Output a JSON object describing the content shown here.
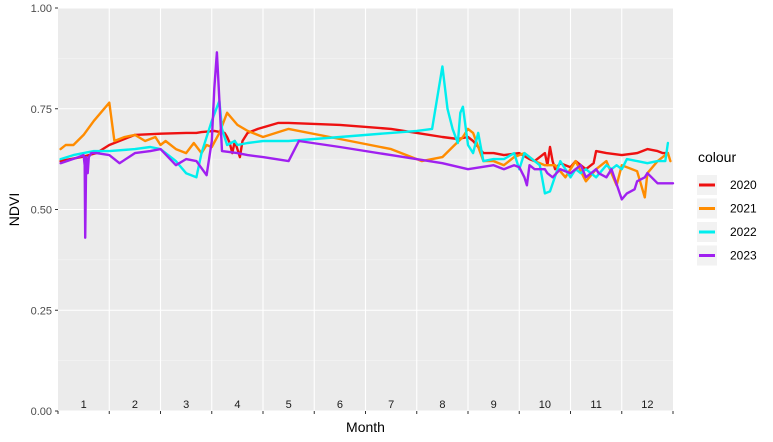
{
  "chart_data": {
    "type": "line",
    "xlabel": "Month",
    "ylabel": "NDVI",
    "ylim": [
      0,
      1
    ],
    "xlim": [
      0.5,
      12.5
    ],
    "y_ticks": [
      "0.00",
      "0.25",
      "0.50",
      "0.75",
      "1.00"
    ],
    "y_tick_values": [
      0,
      0.25,
      0.5,
      0.75,
      1.0
    ],
    "month_labels": [
      "1",
      "2",
      "3",
      "4",
      "5",
      "6",
      "7",
      "8",
      "9",
      "10",
      "11",
      "12"
    ],
    "grid": true,
    "legend": {
      "title": "colour",
      "placement": "right"
    },
    "series": [
      {
        "name": "2020",
        "color": "#ee1111",
        "x": [
          0.55,
          0.75,
          0.95,
          1.1,
          1.25,
          1.5,
          2.0,
          2.5,
          3.0,
          3.2,
          3.3,
          3.55,
          3.75,
          3.8,
          3.85,
          3.9,
          3.95,
          4.0,
          4.05,
          4.1,
          4.2,
          4.4,
          4.8,
          5.0,
          6.0,
          7.0,
          7.5,
          8.0,
          8.3,
          8.5,
          8.6,
          8.8,
          9.0,
          9.2,
          9.5,
          9.7,
          9.8,
          9.9,
          10.0,
          10.05,
          10.1,
          10.15,
          10.2,
          10.3,
          10.5,
          10.6,
          10.7,
          10.8,
          10.95,
          11.0,
          11.2,
          11.5,
          11.8,
          12.0,
          12.2,
          12.3,
          12.4
        ],
        "y": [
          0.62,
          0.625,
          0.63,
          0.635,
          0.64,
          0.66,
          0.685,
          0.688,
          0.69,
          0.69,
          0.692,
          0.695,
          0.69,
          0.68,
          0.665,
          0.64,
          0.67,
          0.65,
          0.63,
          0.67,
          0.69,
          0.7,
          0.715,
          0.715,
          0.71,
          0.7,
          0.69,
          0.68,
          0.675,
          0.68,
          0.67,
          0.64,
          0.64,
          0.635,
          0.64,
          0.625,
          0.62,
          0.63,
          0.64,
          0.61,
          0.655,
          0.62,
          0.6,
          0.615,
          0.605,
          0.62,
          0.61,
          0.6,
          0.615,
          0.645,
          0.64,
          0.635,
          0.64,
          0.65,
          0.645,
          0.64,
          0.64
        ]
      },
      {
        "name": "2021",
        "color": "#ff8c00",
        "x": [
          0.55,
          0.65,
          0.8,
          1.0,
          1.2,
          1.5,
          1.6,
          1.8,
          2.0,
          2.2,
          2.4,
          2.5,
          2.6,
          2.8,
          3.0,
          3.15,
          3.3,
          3.4,
          3.5,
          3.65,
          3.8,
          4.0,
          4.2,
          4.5,
          5.0,
          6.0,
          7.0,
          7.6,
          8.0,
          8.2,
          8.4,
          8.5,
          8.6,
          8.8,
          9.0,
          9.2,
          9.4,
          9.6,
          9.8,
          10.0,
          10.2,
          10.4,
          10.5,
          10.6,
          10.8,
          11.0,
          11.2,
          11.4,
          11.5,
          11.8,
          11.95,
          12.0,
          12.2,
          12.4,
          12.45
        ],
        "y": [
          0.65,
          0.66,
          0.66,
          0.685,
          0.72,
          0.765,
          0.67,
          0.68,
          0.685,
          0.67,
          0.68,
          0.66,
          0.67,
          0.65,
          0.64,
          0.665,
          0.64,
          0.66,
          0.655,
          0.69,
          0.74,
          0.71,
          0.695,
          0.68,
          0.7,
          0.675,
          0.65,
          0.62,
          0.63,
          0.655,
          0.68,
          0.7,
          0.69,
          0.62,
          0.62,
          0.61,
          0.63,
          0.64,
          0.62,
          0.61,
          0.61,
          0.58,
          0.6,
          0.62,
          0.57,
          0.6,
          0.62,
          0.56,
          0.61,
          0.595,
          0.53,
          0.59,
          0.62,
          0.64,
          0.62
        ]
      },
      {
        "name": "2022",
        "color": "#00eeee",
        "x": [
          0.55,
          0.8,
          1.0,
          1.2,
          1.5,
          2.0,
          2.3,
          2.5,
          2.8,
          3.0,
          3.2,
          3.3,
          3.5,
          3.65,
          3.7,
          3.8,
          3.95,
          4.0,
          4.2,
          4.5,
          5.0,
          6.0,
          7.0,
          7.5,
          7.8,
          8.0,
          8.1,
          8.2,
          8.3,
          8.35,
          8.4,
          8.5,
          8.6,
          8.7,
          8.8,
          9.0,
          9.2,
          9.4,
          9.5,
          9.6,
          9.8,
          9.9,
          10.0,
          10.1,
          10.3,
          10.4,
          10.5,
          10.6,
          10.7,
          10.8,
          11.0,
          11.2,
          11.3,
          11.4,
          11.5,
          11.6,
          11.8,
          12.0,
          12.2,
          12.35,
          12.4
        ],
        "y": [
          0.625,
          0.635,
          0.64,
          0.645,
          0.645,
          0.65,
          0.655,
          0.65,
          0.62,
          0.59,
          0.58,
          0.64,
          0.72,
          0.77,
          0.7,
          0.66,
          0.67,
          0.66,
          0.665,
          0.67,
          0.67,
          0.68,
          0.69,
          0.695,
          0.7,
          0.855,
          0.75,
          0.7,
          0.665,
          0.74,
          0.755,
          0.66,
          0.64,
          0.69,
          0.62,
          0.625,
          0.625,
          0.64,
          0.6,
          0.64,
          0.62,
          0.61,
          0.54,
          0.545,
          0.62,
          0.6,
          0.58,
          0.6,
          0.59,
          0.6,
          0.58,
          0.61,
          0.6,
          0.61,
          0.6,
          0.625,
          0.62,
          0.615,
          0.62,
          0.62,
          0.665
        ]
      },
      {
        "name": "2023",
        "color": "#a020f0",
        "x": [
          0.55,
          0.9,
          1.0,
          1.02,
          1.03,
          1.05,
          1.08,
          1.1,
          1.15,
          1.25,
          1.5,
          1.7,
          2.0,
          2.3,
          2.5,
          2.8,
          3.0,
          3.2,
          3.4,
          3.5,
          3.55,
          3.6,
          3.7,
          4.0,
          4.2,
          4.5,
          5.0,
          5.2,
          6.0,
          7.0,
          8.0,
          8.5,
          9.0,
          9.2,
          9.4,
          9.5,
          9.6,
          9.65,
          9.7,
          9.8,
          9.9,
          10.0,
          10.05,
          10.15,
          10.3,
          10.5,
          10.6,
          10.7,
          10.8,
          11.0,
          11.05,
          11.2,
          11.3,
          11.5,
          11.6,
          11.75,
          11.8,
          11.95,
          12.0,
          12.2,
          12.5
        ],
        "y": [
          0.615,
          0.63,
          0.635,
          0.61,
          0.43,
          0.63,
          0.59,
          0.63,
          0.64,
          0.64,
          0.635,
          0.615,
          0.64,
          0.645,
          0.65,
          0.61,
          0.625,
          0.62,
          0.585,
          0.67,
          0.8,
          0.89,
          0.645,
          0.64,
          0.635,
          0.63,
          0.62,
          0.67,
          0.655,
          0.635,
          0.615,
          0.6,
          0.61,
          0.6,
          0.61,
          0.605,
          0.58,
          0.56,
          0.61,
          0.6,
          0.6,
          0.6,
          0.59,
          0.58,
          0.6,
          0.59,
          0.6,
          0.61,
          0.58,
          0.6,
          0.59,
          0.58,
          0.6,
          0.525,
          0.54,
          0.55,
          0.57,
          0.58,
          0.59,
          0.565,
          0.565
        ]
      }
    ]
  }
}
